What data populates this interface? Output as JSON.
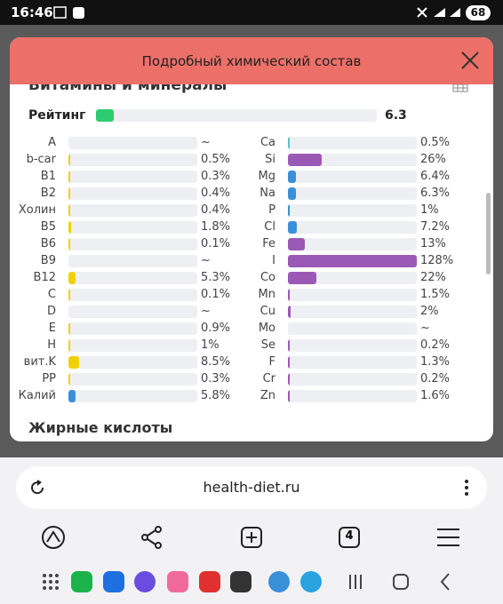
{
  "status_bar": {
    "time": "16:46",
    "battery": "68"
  },
  "modal": {
    "title": "Подробный химический состав",
    "section": "Витамины и минералы",
    "rating": {
      "label": "Рейтинг",
      "value": 6.3,
      "color": "#2ecc71"
    },
    "columns": [
      [
        {
          "name": "A",
          "value": null,
          "label": "~",
          "color": "#f2d000"
        },
        {
          "name": "b-car",
          "value": 0.5,
          "label": "0.5%",
          "color": "#f2d000"
        },
        {
          "name": "B1",
          "value": 0.3,
          "label": "0.3%",
          "color": "#f2d000"
        },
        {
          "name": "B2",
          "value": 0.4,
          "label": "0.4%",
          "color": "#f2d000"
        },
        {
          "name": "Холин",
          "value": 0.4,
          "label": "0.4%",
          "color": "#f2d000"
        },
        {
          "name": "B5",
          "value": 1.8,
          "label": "1.8%",
          "color": "#f2d000"
        },
        {
          "name": "B6",
          "value": 0.1,
          "label": "0.1%",
          "color": "#f2d000"
        },
        {
          "name": "B9",
          "value": null,
          "label": "~",
          "color": "#f2d000"
        },
        {
          "name": "B12",
          "value": 5.3,
          "label": "5.3%",
          "color": "#f2d000"
        },
        {
          "name": "C",
          "value": 0.1,
          "label": "0.1%",
          "color": "#f2d000"
        },
        {
          "name": "D",
          "value": null,
          "label": "~",
          "color": "#f2d000"
        },
        {
          "name": "E",
          "value": 0.9,
          "label": "0.9%",
          "color": "#f2d000"
        },
        {
          "name": "H",
          "value": 1,
          "label": "1%",
          "color": "#f2d000"
        },
        {
          "name": "вит.K",
          "value": 8.5,
          "label": "8.5%",
          "color": "#f2d000"
        },
        {
          "name": "PP",
          "value": 0.3,
          "label": "0.3%",
          "color": "#f2d000"
        },
        {
          "name": "Калий",
          "value": 5.8,
          "label": "5.8%",
          "color": "#3a8fd9"
        }
      ],
      [
        {
          "name": "Ca",
          "value": 0.5,
          "label": "0.5%",
          "color": "#5bc0c8"
        },
        {
          "name": "Si",
          "value": 26,
          "label": "26%",
          "color": "#9b59b6"
        },
        {
          "name": "Mg",
          "value": 6.4,
          "label": "6.4%",
          "color": "#3a8fd9"
        },
        {
          "name": "Na",
          "value": 6.3,
          "label": "6.3%",
          "color": "#3a8fd9"
        },
        {
          "name": "P",
          "value": 1,
          "label": "1%",
          "color": "#3a8fd9"
        },
        {
          "name": "Cl",
          "value": 7.2,
          "label": "7.2%",
          "color": "#3a8fd9"
        },
        {
          "name": "Fe",
          "value": 13,
          "label": "13%",
          "color": "#9b59b6"
        },
        {
          "name": "I",
          "value": 128,
          "label": "128%",
          "color": "#9b59b6"
        },
        {
          "name": "Co",
          "value": 22,
          "label": "22%",
          "color": "#9b59b6"
        },
        {
          "name": "Mn",
          "value": 1.5,
          "label": "1.5%",
          "color": "#9b59b6"
        },
        {
          "name": "Cu",
          "value": 2,
          "label": "2%",
          "color": "#9b59b6"
        },
        {
          "name": "Mo",
          "value": null,
          "label": "~",
          "color": "#9b59b6"
        },
        {
          "name": "Se",
          "value": 0.2,
          "label": "0.2%",
          "color": "#9b59b6"
        },
        {
          "name": "F",
          "value": 1.3,
          "label": "1.3%",
          "color": "#9b59b6"
        },
        {
          "name": "Cr",
          "value": 0.2,
          "label": "0.2%",
          "color": "#9b59b6"
        },
        {
          "name": "Zn",
          "value": 1.6,
          "label": "1.6%",
          "color": "#9b59b6"
        }
      ]
    ],
    "next_section": "Жирные кислоты"
  },
  "browser": {
    "url": "health-diet.ru",
    "tabs": "4"
  }
}
